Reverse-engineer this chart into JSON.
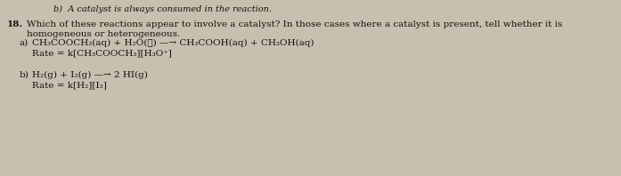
{
  "background_color": "#c8bfb0",
  "top_text": "b)  A catalyst is always consumed in the reaction.",
  "question_number": "18.",
  "question_text": "Which of these reactions appear to involve a catalyst? In those cases where a catalyst is present, tell whether it is",
  "question_text2": "homogeneous or heterogeneous.",
  "part_a_label": "a)",
  "part_a_reaction": "CH₃COOCH₃(aq) + H₂O(ℓ) —→ CH₃COOH(aq) + CH₃OH(aq)",
  "part_a_rate": "Rate = k[CH₃COOCH₃][H₃O⁺]",
  "part_b_label": "b)",
  "part_b_reaction": "H₂(g) + I₂(g) —→ 2 HI(g)",
  "part_b_rate": "Rate = k[H₂][I₂]",
  "font_size_main": 7.5,
  "font_size_top": 7.0,
  "text_color": "#1a1008",
  "fig_width": 6.97,
  "fig_height": 1.98,
  "dpi": 100
}
